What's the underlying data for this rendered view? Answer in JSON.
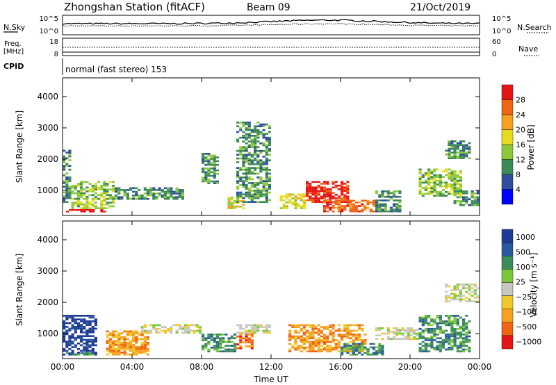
{
  "header": {
    "station": "Zhongshan Station (fitACF)",
    "beam": "Beam 09",
    "date": "21/Oct/2019",
    "mode": "normal (fast stereo) 153"
  },
  "noise_panel": {
    "left_label": "N.Sky",
    "right_label": "N.Search",
    "left_ticks": [
      "10^5",
      "10^0"
    ],
    "right_ticks": [
      "10^5",
      "10^0"
    ]
  },
  "freq_panel": {
    "left_label_1": "Freq.",
    "left_label_2": "[MHz]",
    "right_label": "Nave",
    "left_ticks": [
      "18",
      "8"
    ],
    "right_ticks": [
      "60",
      "0"
    ],
    "cpid_label": "CPID"
  },
  "colors": {
    "power": [
      "#0000ff",
      "#2d4f9e",
      "#3c8a55",
      "#8cc83c",
      "#e6dc1e",
      "#f5a01e",
      "#f06414",
      "#e61414"
    ],
    "velocity": [
      "#1e3c96",
      "#285aa0",
      "#3c8c5a",
      "#78c83c",
      "#c8c8c0",
      "#f0c828",
      "#f5a01e",
      "#f06414",
      "#e61414"
    ]
  },
  "chart_data": [
    {
      "type": "heatmap",
      "ylabel": "Slant Range [km]",
      "xlabel": "",
      "x_ticks": [
        "00:00",
        "04:00",
        "08:00",
        "12:00",
        "16:00",
        "20:00",
        "00:00"
      ],
      "y_ticks": [
        "1000",
        "2000",
        "3000",
        "4000"
      ],
      "xlim_hours": [
        0,
        24
      ],
      "ylim": [
        200,
        4600
      ],
      "colorbar": {
        "label": "Power [dB]",
        "ticks": [
          "4",
          "8",
          "12",
          "16",
          "20",
          "24",
          "28"
        ],
        "range": [
          0,
          32
        ]
      },
      "blobs": [
        {
          "t0": 0.0,
          "t1": 0.5,
          "r0": 600,
          "r1": 2300,
          "level": 2
        },
        {
          "t0": 0.2,
          "t1": 2.5,
          "r0": 300,
          "r1": 400,
          "level": 8
        },
        {
          "t0": 0.5,
          "t1": 3.0,
          "r0": 400,
          "r1": 1300,
          "level": 3
        },
        {
          "t0": 3.0,
          "t1": 7.0,
          "r0": 700,
          "r1": 1100,
          "level": 2
        },
        {
          "t0": 8.0,
          "t1": 9.0,
          "r0": 1200,
          "r1": 2200,
          "level": 2
        },
        {
          "t0": 9.5,
          "t1": 10.5,
          "r0": 400,
          "r1": 800,
          "level": 4
        },
        {
          "t0": 10.0,
          "t1": 12.0,
          "r0": 600,
          "r1": 3200,
          "level": 2
        },
        {
          "t0": 12.5,
          "t1": 14.0,
          "r0": 400,
          "r1": 900,
          "level": 4
        },
        {
          "t0": 14.0,
          "t1": 16.5,
          "r0": 600,
          "r1": 1300,
          "level": 7
        },
        {
          "t0": 15.0,
          "t1": 18.0,
          "r0": 300,
          "r1": 700,
          "level": 6
        },
        {
          "t0": 18.0,
          "t1": 19.5,
          "r0": 300,
          "r1": 1000,
          "level": 2
        },
        {
          "t0": 20.5,
          "t1": 23.0,
          "r0": 800,
          "r1": 1700,
          "level": 3
        },
        {
          "t0": 22.0,
          "t1": 23.5,
          "r0": 2000,
          "r1": 2600,
          "level": 2
        },
        {
          "t0": 22.5,
          "t1": 24.0,
          "r0": 500,
          "r1": 1000,
          "level": 2
        }
      ]
    },
    {
      "type": "heatmap",
      "ylabel": "Slant Range [km]",
      "xlabel": "Time UT",
      "x_ticks": [
        "00:00",
        "04:00",
        "08:00",
        "12:00",
        "16:00",
        "20:00",
        "00:00"
      ],
      "y_ticks": [
        "1000",
        "2000",
        "3000",
        "4000"
      ],
      "xlim_hours": [
        0,
        24
      ],
      "ylim": [
        200,
        4600
      ],
      "colorbar": {
        "label": "Velocity [m s⁻¹]",
        "ticks": [
          "1000",
          "500",
          "100",
          "25",
          "−25",
          "−100",
          "−500",
          "−1000"
        ]
      },
      "blobs": [
        {
          "t0": 0.0,
          "t1": 2.0,
          "r0": 300,
          "r1": 1600,
          "level": 0
        },
        {
          "t0": 0.2,
          "t1": 2.0,
          "r0": 300,
          "r1": 400,
          "level": 2
        },
        {
          "t0": 2.5,
          "t1": 5.0,
          "r0": 300,
          "r1": 1100,
          "level": 6
        },
        {
          "t0": 4.5,
          "t1": 8.0,
          "r0": 1000,
          "r1": 1300,
          "level": 4
        },
        {
          "t0": 8.0,
          "t1": 10.0,
          "r0": 400,
          "r1": 1000,
          "level": 2
        },
        {
          "t0": 10.0,
          "t1": 12.0,
          "r0": 1000,
          "r1": 1300,
          "level": 4
        },
        {
          "t0": 10.0,
          "t1": 11.0,
          "r0": 500,
          "r1": 1000,
          "level": 7
        },
        {
          "t0": 13.0,
          "t1": 17.5,
          "r0": 400,
          "r1": 1300,
          "level": 6
        },
        {
          "t0": 16.0,
          "t1": 18.5,
          "r0": 300,
          "r1": 700,
          "level": 2
        },
        {
          "t0": 18.0,
          "t1": 20.5,
          "r0": 800,
          "r1": 1200,
          "level": 4
        },
        {
          "t0": 20.5,
          "t1": 23.5,
          "r0": 400,
          "r1": 1600,
          "level": 2
        },
        {
          "t0": 22.0,
          "t1": 24.0,
          "r0": 2000,
          "r1": 2600,
          "level": 4
        }
      ]
    }
  ]
}
